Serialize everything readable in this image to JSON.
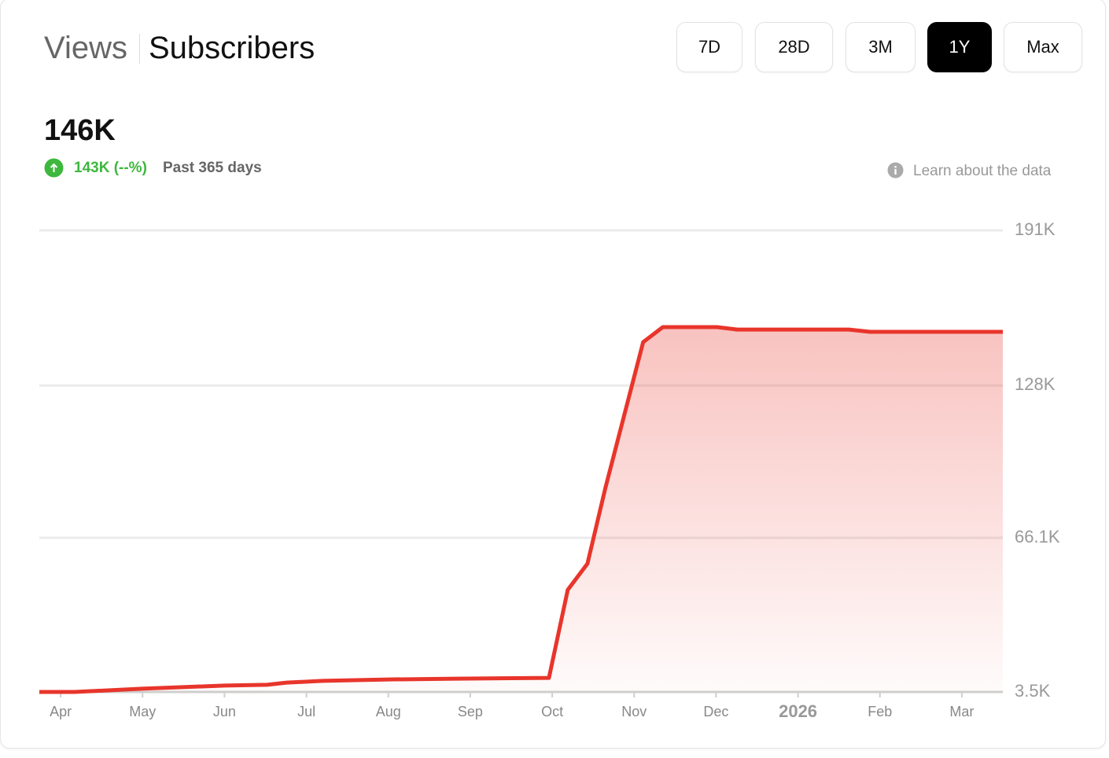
{
  "header": {
    "tabs": [
      "Views",
      "Subscribers"
    ],
    "range_buttons": [
      "7D",
      "28D",
      "3M",
      "1Y",
      "Max"
    ],
    "selected_range": "1Y",
    "total": "146K",
    "change": "143K (--%)",
    "period": "Past 365 days",
    "info_link": "Learn about the data"
  },
  "chart_data": {
    "type": "area",
    "color": "#e8352b",
    "grid": true,
    "x": [
      -0.26,
      0.17,
      0.99,
      2.0,
      2.52,
      2.76,
      3.2,
      4.06,
      4.83,
      5.96,
      6.19,
      6.43,
      6.65,
      7.11,
      7.35,
      8.01,
      8.26,
      9.62,
      9.88,
      11.5
    ],
    "values": [
      3.5,
      3.5,
      4.8,
      6.1,
      6.4,
      7.3,
      8.0,
      8.6,
      8.9,
      9.2,
      45.0,
      55.6,
      86.5,
      145.6,
      151.7,
      151.7,
      150.7,
      150.7,
      149.8,
      149.8
    ],
    "xlim": [
      -0.26,
      11.5
    ],
    "xticks": [
      {
        "value": 0,
        "label": "Apr"
      },
      {
        "value": 1,
        "label": "May"
      },
      {
        "value": 2,
        "label": "Jun"
      },
      {
        "value": 3,
        "label": "Jul"
      },
      {
        "value": 4,
        "label": "Aug"
      },
      {
        "value": 5,
        "label": "Sep"
      },
      {
        "value": 6,
        "label": "Oct"
      },
      {
        "value": 7,
        "label": "Nov"
      },
      {
        "value": 8,
        "label": "Dec"
      },
      {
        "value": 9,
        "label": "2026",
        "bold": true
      },
      {
        "value": 10,
        "label": "Feb"
      },
      {
        "value": 11,
        "label": "Mar"
      }
    ],
    "ylim": [
      3.5,
      191
    ],
    "yticks": [
      {
        "value": 3.5,
        "label": "3.5K"
      },
      {
        "value": 66.1,
        "label": "66.1K"
      },
      {
        "value": 128,
        "label": "128K"
      },
      {
        "value": 191,
        "label": "191K"
      }
    ]
  }
}
